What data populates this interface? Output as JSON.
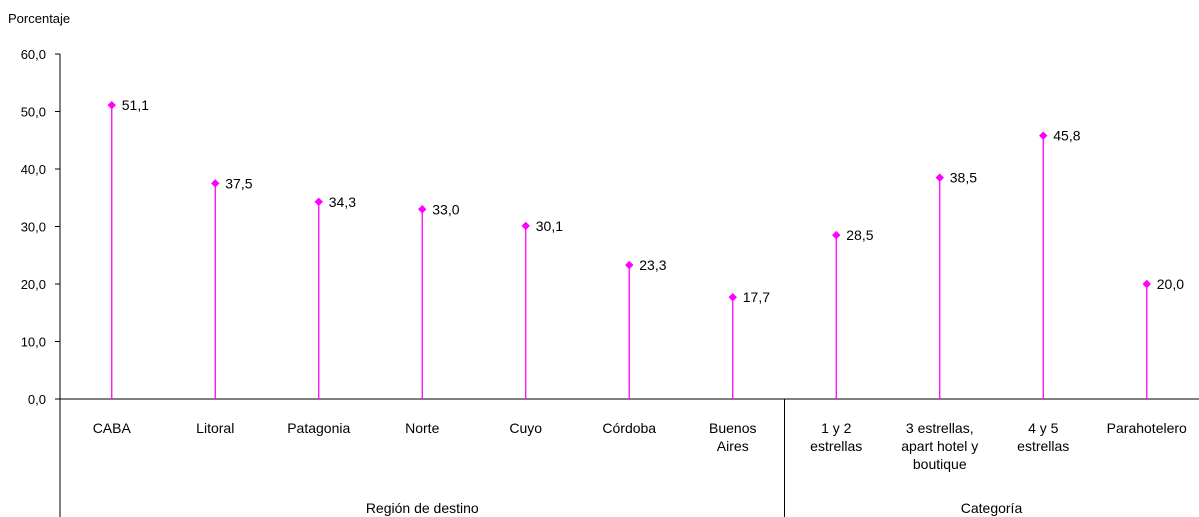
{
  "chart_data": {
    "type": "scatter",
    "ylabel": "Porcentaje",
    "ylim": [
      0,
      60
    ],
    "yticks": [
      "0,0",
      "10,0",
      "20,0",
      "30,0",
      "40,0",
      "50,0",
      "60,0"
    ],
    "categories": [
      [
        "CABA"
      ],
      [
        "Litoral"
      ],
      [
        "Patagonia"
      ],
      [
        "Norte"
      ],
      [
        "Cuyo"
      ],
      [
        "Córdoba"
      ],
      [
        "Buenos",
        "Aires"
      ],
      [
        "1 y 2",
        "estrellas"
      ],
      [
        "3 estrellas,",
        "apart hotel y",
        "boutique"
      ],
      [
        "4 y 5",
        "estrellas"
      ],
      [
        "Parahotelero"
      ]
    ],
    "values": [
      51.1,
      37.5,
      34.3,
      33.0,
      30.1,
      23.3,
      17.7,
      28.5,
      38.5,
      45.8,
      20.0
    ],
    "value_labels": [
      "51,1",
      "37,5",
      "34,3",
      "33,0",
      "30,1",
      "23,3",
      "17,7",
      "28,5",
      "38,5",
      "45,8",
      "20,0"
    ],
    "groups": [
      {
        "name": "Región de destino",
        "start": 0,
        "end": 6
      },
      {
        "name": "Categoría",
        "start": 7,
        "end": 10
      }
    ],
    "marker_color": "#ff00ff",
    "grid": false
  }
}
